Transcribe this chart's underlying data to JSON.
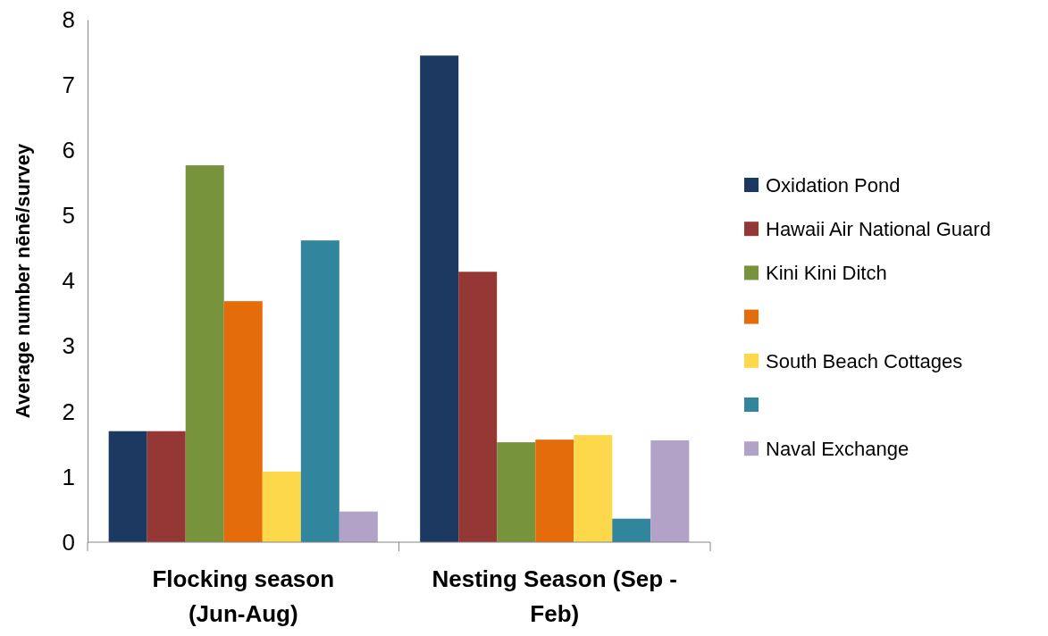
{
  "chart_data": {
    "type": "bar",
    "ylabel": "Average number nēnē/survey",
    "categories": [
      "Flocking season (Jun-Aug)",
      "Nesting Season (Sep - Feb)"
    ],
    "series": [
      {
        "name": "Oxidation Pond",
        "color": "#1c3a61",
        "values": [
          1.7,
          7.45
        ]
      },
      {
        "name": "Hawaii Air National Guard",
        "color": "#953735",
        "values": [
          1.7,
          4.14
        ]
      },
      {
        "name": "Kini Kini Ditch",
        "color": "#77933c",
        "values": [
          5.77,
          1.53
        ]
      },
      {
        "color": "#e46c0a",
        "values": [
          3.69,
          1.57
        ]
      },
      {
        "name": "South Beach Cottages",
        "color": "#fcd84a",
        "values": [
          1.08,
          1.64
        ]
      },
      {
        "color": "#31859c",
        "values": [
          4.62,
          0.36
        ]
      },
      {
        "name": "Naval Exchange",
        "color": "#b3a2c7",
        "values": [
          0.47,
          1.56
        ]
      }
    ],
    "ylim": [
      0,
      8
    ],
    "yticks": [
      0,
      1,
      2,
      3,
      4,
      5,
      6,
      7,
      8
    ],
    "grid": false,
    "legend": "right"
  }
}
